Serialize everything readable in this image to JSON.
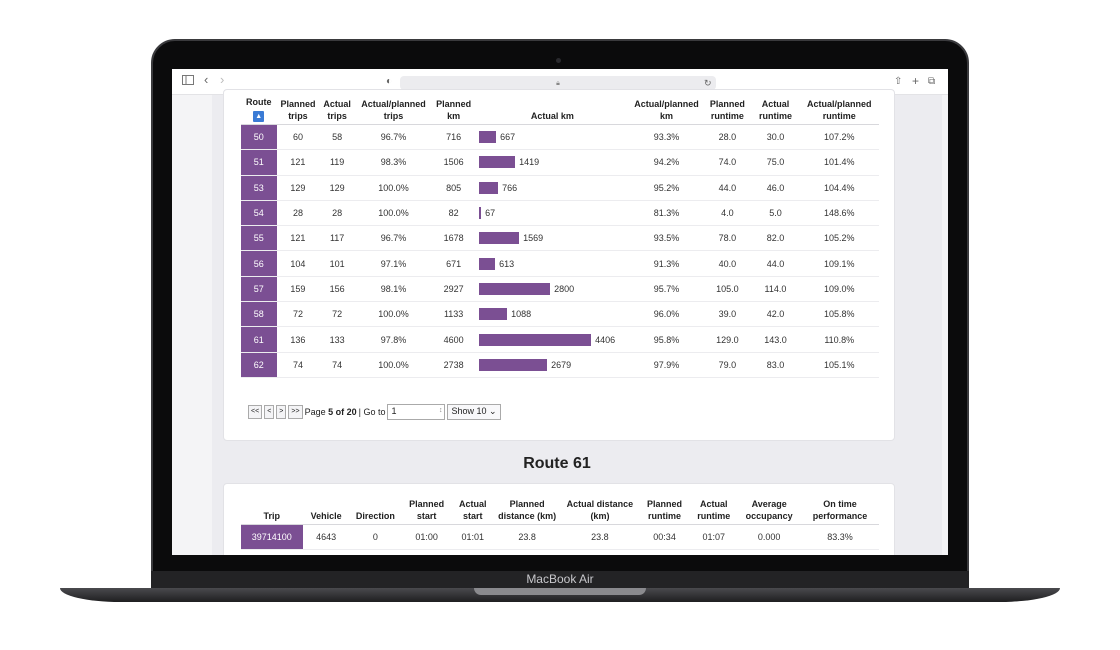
{
  "device_label": "MacBook Air",
  "browser": {
    "sidebar_icon": "sidebar-icon",
    "back": "‹",
    "forward": "›",
    "shield": "◐",
    "lock": "🔒",
    "reload": "↻",
    "share": "⇧",
    "new_tab": "+",
    "tabs": "⧉"
  },
  "route_table": {
    "headers": [
      "Route",
      "Planned trips",
      "Actual trips",
      "Actual/planned trips",
      "Planned km",
      "Actual km",
      "Actual/planned km",
      "Planned runtime",
      "Actual runtime",
      "Actual/planned runtime"
    ],
    "sort_indicator": "▲",
    "rows": [
      {
        "route": "50",
        "planned_trips": "60",
        "actual_trips": "58",
        "ratio_trips": "96.7%",
        "planned_km": "716",
        "actual_km": 667,
        "actual_km_label": "667",
        "ratio_km": "93.3%",
        "planned_runtime": "28.0",
        "actual_runtime": "30.0",
        "ratio_runtime": "107.2%"
      },
      {
        "route": "51",
        "planned_trips": "121",
        "actual_trips": "119",
        "ratio_trips": "98.3%",
        "planned_km": "1506",
        "actual_km": 1419,
        "actual_km_label": "1419",
        "ratio_km": "94.2%",
        "planned_runtime": "74.0",
        "actual_runtime": "75.0",
        "ratio_runtime": "101.4%"
      },
      {
        "route": "53",
        "planned_trips": "129",
        "actual_trips": "129",
        "ratio_trips": "100.0%",
        "planned_km": "805",
        "actual_km": 766,
        "actual_km_label": "766",
        "ratio_km": "95.2%",
        "planned_runtime": "44.0",
        "actual_runtime": "46.0",
        "ratio_runtime": "104.4%"
      },
      {
        "route": "54",
        "planned_trips": "28",
        "actual_trips": "28",
        "ratio_trips": "100.0%",
        "planned_km": "82",
        "actual_km": 67,
        "actual_km_label": "67",
        "ratio_km": "81.3%",
        "planned_runtime": "4.0",
        "actual_runtime": "5.0",
        "ratio_runtime": "148.6%"
      },
      {
        "route": "55",
        "planned_trips": "121",
        "actual_trips": "117",
        "ratio_trips": "96.7%",
        "planned_km": "1678",
        "actual_km": 1569,
        "actual_km_label": "1569",
        "ratio_km": "93.5%",
        "planned_runtime": "78.0",
        "actual_runtime": "82.0",
        "ratio_runtime": "105.2%"
      },
      {
        "route": "56",
        "planned_trips": "104",
        "actual_trips": "101",
        "ratio_trips": "97.1%",
        "planned_km": "671",
        "actual_km": 613,
        "actual_km_label": "613",
        "ratio_km": "91.3%",
        "planned_runtime": "40.0",
        "actual_runtime": "44.0",
        "ratio_runtime": "109.1%"
      },
      {
        "route": "57",
        "planned_trips": "159",
        "actual_trips": "156",
        "ratio_trips": "98.1%",
        "planned_km": "2927",
        "actual_km": 2800,
        "actual_km_label": "2800",
        "ratio_km": "95.7%",
        "planned_runtime": "105.0",
        "actual_runtime": "114.0",
        "ratio_runtime": "109.0%"
      },
      {
        "route": "58",
        "planned_trips": "72",
        "actual_trips": "72",
        "ratio_trips": "100.0%",
        "planned_km": "1133",
        "actual_km": 1088,
        "actual_km_label": "1088",
        "ratio_km": "96.0%",
        "planned_runtime": "39.0",
        "actual_runtime": "42.0",
        "ratio_runtime": "105.8%"
      },
      {
        "route": "61",
        "planned_trips": "136",
        "actual_trips": "133",
        "ratio_trips": "97.8%",
        "planned_km": "4600",
        "actual_km": 4406,
        "actual_km_label": "4406",
        "ratio_km": "95.8%",
        "planned_runtime": "129.0",
        "actual_runtime": "143.0",
        "ratio_runtime": "110.8%"
      },
      {
        "route": "62",
        "planned_trips": "74",
        "actual_trips": "74",
        "ratio_trips": "100.0%",
        "planned_km": "2738",
        "actual_km": 2679,
        "actual_km_label": "2679",
        "ratio_km": "97.9%",
        "planned_runtime": "79.0",
        "actual_runtime": "83.0",
        "ratio_runtime": "105.1%"
      }
    ],
    "bar_color": "#7b4f93"
  },
  "pager": {
    "first": "<<",
    "prev": "<",
    "next": ">",
    "last": ">>",
    "page_prefix": "Page ",
    "page_current": "5 of 20",
    "goto_label": "| Go to",
    "goto_value": "1",
    "show_label": "Show 10 ⌄"
  },
  "section_title": "Route 61",
  "trip_table": {
    "headers": [
      "Trip",
      "Vehicle",
      "Direction",
      "Planned start",
      "Actual start",
      "Planned distance (km)",
      "Actual distance (km)",
      "Planned runtime",
      "Actual runtime",
      "Average occupancy",
      "On time performance"
    ],
    "rows": [
      {
        "trip": "39714100",
        "vehicle": "4643",
        "direction": "0",
        "planned_start": "01:00",
        "actual_start": "01:01",
        "planned_distance": "23.8",
        "actual_distance": "23.8",
        "planned_runtime": "00:34",
        "actual_runtime": "01:07",
        "avg_occupancy": "0.000",
        "otp": "83.3%"
      }
    ]
  },
  "colors": {
    "accent": "#7b4f93",
    "sort_button": "#3a7bd5"
  }
}
